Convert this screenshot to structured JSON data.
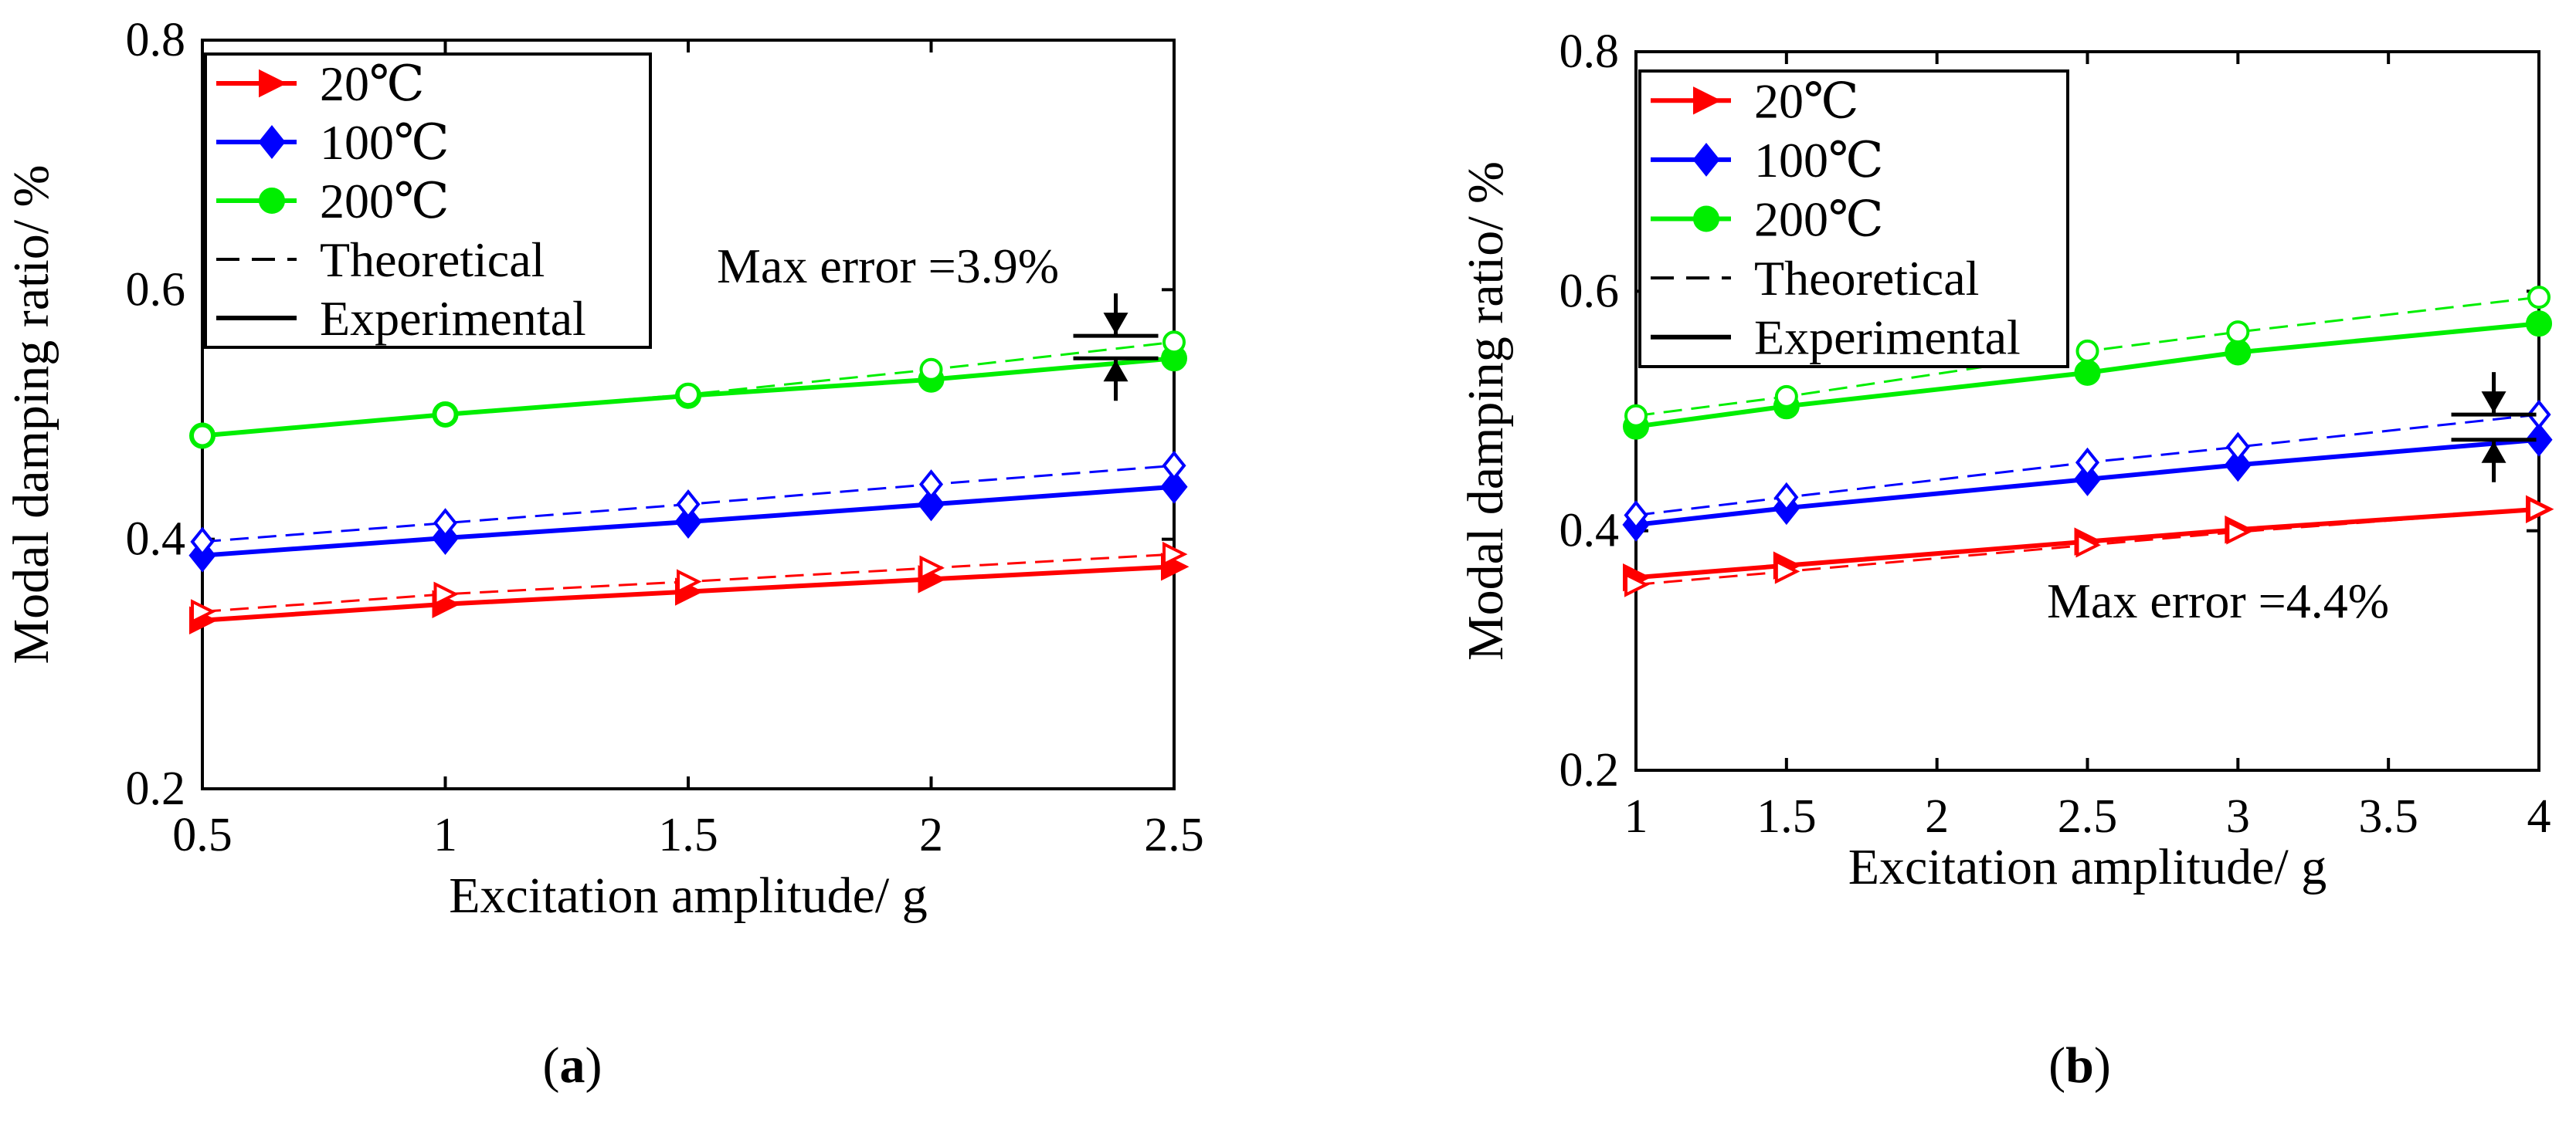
{
  "chart_data": [
    {
      "id": "a",
      "type": "line",
      "panel_label": "a",
      "title": "",
      "xlabel": "Excitation amplitude/ g",
      "ylabel": "Modal damping  ratio/ %",
      "xlim": [
        0.5,
        2.5
      ],
      "ylim": [
        0.2,
        0.8
      ],
      "xticks": [
        0.5,
        1,
        1.5,
        2,
        2.5
      ],
      "xtick_labels": [
        "0.5",
        "1",
        "1.5",
        "2",
        "2.5"
      ],
      "yticks": [
        0.2,
        0.4,
        0.6,
        0.8
      ],
      "ytick_labels": [
        "0.2",
        "0.4",
        "0.6",
        "0.8"
      ],
      "x": [
        0.5,
        1,
        1.5,
        2,
        2.5
      ],
      "series": [
        {
          "name": "20℃",
          "kind": "Experimental",
          "color": "#ff0000",
          "marker": "triangle-right",
          "filled": true,
          "values": [
            0.335,
            0.348,
            0.358,
            0.368,
            0.378
          ]
        },
        {
          "name": "20℃",
          "kind": "Theoretical",
          "color": "#ff0000",
          "marker": "triangle-right",
          "filled": false,
          "values": [
            0.342,
            0.356,
            0.366,
            0.377,
            0.388
          ]
        },
        {
          "name": "100℃",
          "kind": "Experimental",
          "color": "#0000ff",
          "marker": "diamond",
          "filled": true,
          "values": [
            0.387,
            0.401,
            0.414,
            0.428,
            0.442
          ]
        },
        {
          "name": "100℃",
          "kind": "Theoretical",
          "color": "#0000ff",
          "marker": "diamond",
          "filled": false,
          "values": [
            0.398,
            0.413,
            0.428,
            0.444,
            0.459
          ]
        },
        {
          "name": "200℃",
          "kind": "Experimental",
          "color": "#00ee00",
          "marker": "circle",
          "filled": true,
          "values": [
            0.483,
            0.5,
            0.515,
            0.528,
            0.545
          ]
        },
        {
          "name": "200℃",
          "kind": "Theoretical",
          "color": "#00ee00",
          "marker": "circle",
          "filled": false,
          "values": [
            0.483,
            0.5,
            0.516,
            0.536,
            0.558
          ]
        }
      ],
      "legend": {
        "placement": "top-left",
        "entries": [
          {
            "label": "20℃",
            "color": "#ff0000",
            "marker": "triangle-right",
            "dash": false
          },
          {
            "label": "100℃",
            "color": "#0000ff",
            "marker": "diamond",
            "dash": false
          },
          {
            "label": "200℃",
            "color": "#00ee00",
            "marker": "circle",
            "dash": false
          },
          {
            "label": "Theoretical",
            "color": "#000000",
            "marker": "none",
            "dash": true
          },
          {
            "label": "Experimental",
            "color": "#000000",
            "marker": "none",
            "dash": false
          }
        ]
      },
      "annotation": {
        "text": "Max error =3.9%",
        "x": 2.38,
        "y_low": 0.545,
        "y_high": 0.563
      }
    },
    {
      "id": "b",
      "type": "line",
      "panel_label": "b",
      "title": "",
      "xlabel": "Excitation amplitude/ g",
      "ylabel": "Modal damping  ratio/ %",
      "xlim": [
        1,
        4
      ],
      "ylim": [
        0.2,
        0.8
      ],
      "xticks": [
        1,
        1.5,
        2,
        2.5,
        3,
        3.5,
        4
      ],
      "xtick_labels": [
        "1",
        "1.5",
        "2",
        "2.5",
        "3",
        "3.5",
        "4"
      ],
      "yticks": [
        0.2,
        0.4,
        0.6,
        0.8
      ],
      "ytick_labels": [
        "0.2",
        "0.4",
        "0.6",
        "0.8"
      ],
      "x": [
        1,
        1.5,
        2.5,
        3,
        4
      ],
      "series": [
        {
          "name": "20℃",
          "kind": "Experimental",
          "color": "#ff0000",
          "marker": "triangle-right",
          "filled": true,
          "values": [
            0.361,
            0.371,
            0.391,
            0.401,
            0.418
          ]
        },
        {
          "name": "20℃",
          "kind": "Theoretical",
          "color": "#ff0000",
          "marker": "triangle-right",
          "filled": false,
          "values": [
            0.355,
            0.366,
            0.388,
            0.399,
            0.418
          ]
        },
        {
          "name": "100℃",
          "kind": "Experimental",
          "color": "#0000ff",
          "marker": "diamond",
          "filled": true,
          "values": [
            0.405,
            0.419,
            0.443,
            0.455,
            0.476
          ]
        },
        {
          "name": "100℃",
          "kind": "Theoretical",
          "color": "#0000ff",
          "marker": "diamond",
          "filled": false,
          "values": [
            0.413,
            0.428,
            0.457,
            0.47,
            0.497
          ]
        },
        {
          "name": "200℃",
          "kind": "Experimental",
          "color": "#00ee00",
          "marker": "circle",
          "filled": true,
          "values": [
            0.487,
            0.504,
            0.532,
            0.549,
            0.573
          ]
        },
        {
          "name": "200℃",
          "kind": "Theoretical",
          "color": "#00ee00",
          "marker": "circle",
          "filled": false,
          "values": [
            0.496,
            0.512,
            0.55,
            0.566,
            0.595
          ]
        }
      ],
      "legend": {
        "placement": "top-left",
        "entries": [
          {
            "label": "20℃",
            "color": "#ff0000",
            "marker": "triangle-right",
            "dash": false
          },
          {
            "label": "100℃",
            "color": "#0000ff",
            "marker": "diamond",
            "dash": false
          },
          {
            "label": "200℃",
            "color": "#00ee00",
            "marker": "circle",
            "dash": false
          },
          {
            "label": "Theoretical",
            "color": "#000000",
            "marker": "none",
            "dash": true
          },
          {
            "label": "Experimental",
            "color": "#000000",
            "marker": "none",
            "dash": false
          }
        ]
      },
      "annotation": {
        "text": "Max error =4.4%",
        "x": 3.85,
        "y_low": 0.476,
        "y_high": 0.497
      }
    }
  ]
}
